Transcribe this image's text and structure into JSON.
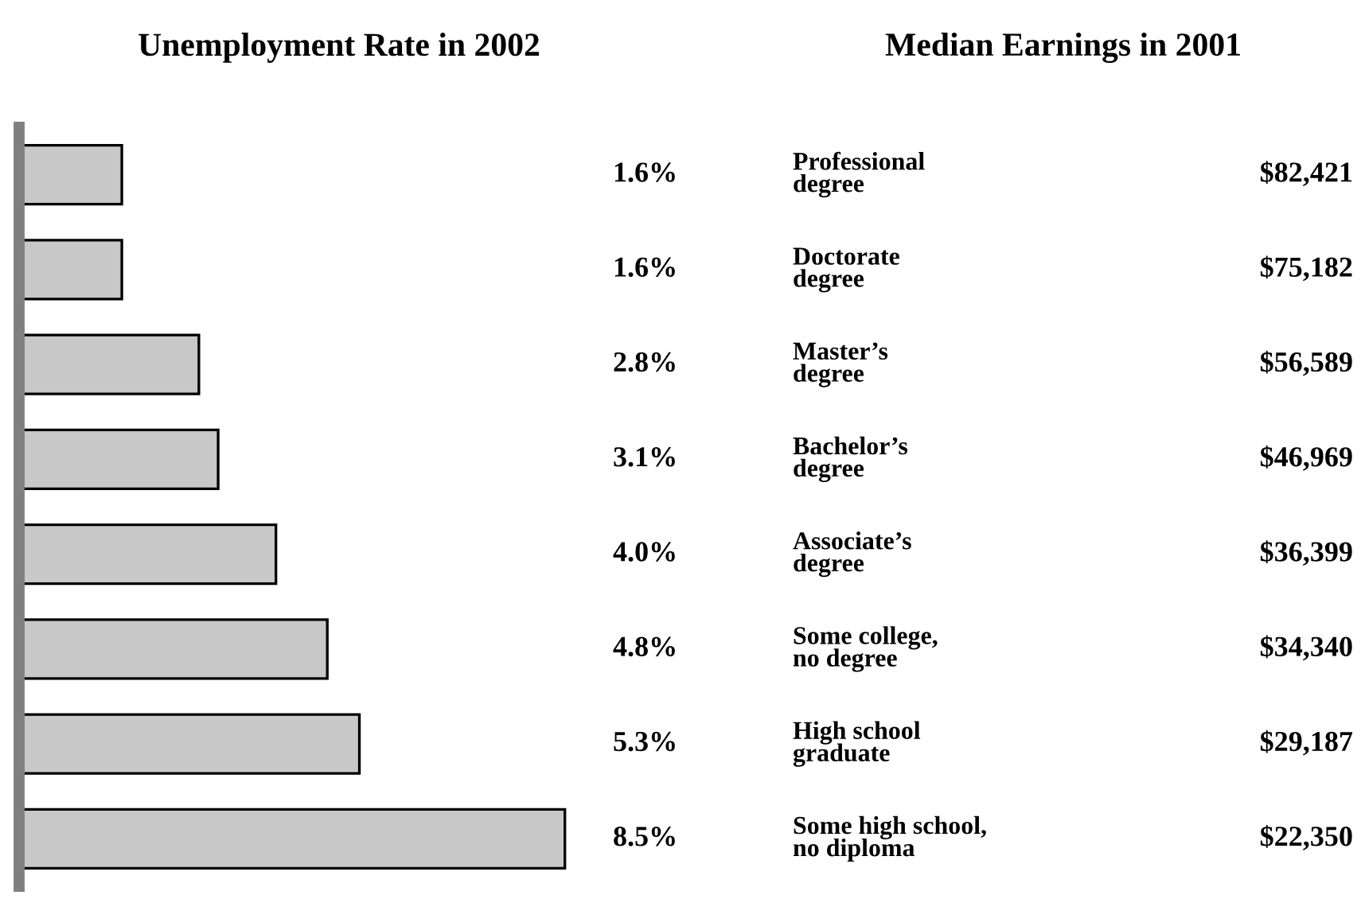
{
  "chart_data": [
    {
      "type": "bar",
      "orientation": "horizontal",
      "title": "Unemployment Rate in 2002",
      "categories": [
        "Professional\ndegree",
        "Doctorate\ndegree",
        "Master’s\ndegree",
        "Bachelor’s\ndegree",
        "Associate’s\ndegree",
        "Some college,\nno degree",
        "High school\ngraduate",
        "Some high school,\nno diploma"
      ],
      "values": [
        1.6,
        1.6,
        2.8,
        3.1,
        4.0,
        4.8,
        5.3,
        8.5
      ],
      "value_labels": [
        "1.6%",
        "1.6%",
        "2.8%",
        "3.1%",
        "4.0%",
        "4.8%",
        "5.3%",
        "8.5%"
      ],
      "color": "#c8c8c8",
      "legend": false,
      "tick_labels": false
    },
    {
      "type": "other",
      "title": "Median Earnings in 2001",
      "values": [
        82421,
        75182,
        56589,
        46969,
        36399,
        34340,
        29187,
        22350
      ],
      "value_labels": [
        "$82,421",
        "$75,182",
        "$56,589",
        "$46,969",
        "$36,399",
        "$34,340",
        "$29,187",
        "$22,350"
      ]
    }
  ]
}
